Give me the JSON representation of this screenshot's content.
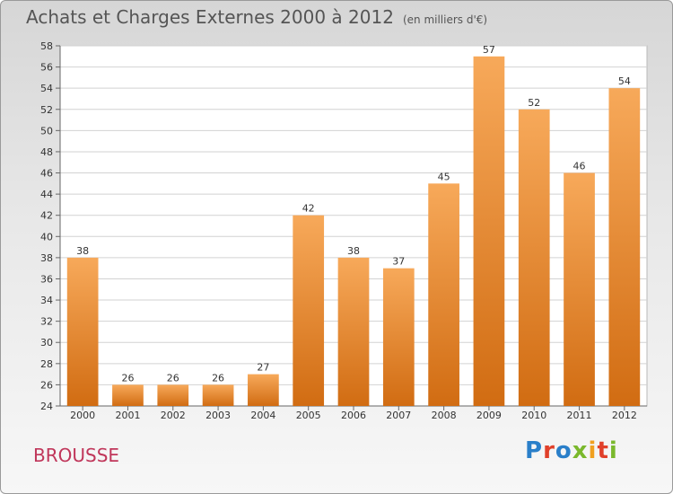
{
  "title": "Achats et Charges Externes 2000 à 2012",
  "subtitle": "(en milliers d'€)",
  "place": "BROUSSE",
  "logo": "Proxiti",
  "colors": {
    "bar_light": "#f7a95a",
    "bar_dark": "#d16c12",
    "place_text": "#c0365a",
    "logo_letters": [
      "#2a7fc9",
      "#e0402a",
      "#2a7fc9",
      "#7ab82c",
      "#f0a020",
      "#e0402a",
      "#7ab82c"
    ]
  },
  "chart_data": {
    "type": "bar",
    "categories": [
      "2000",
      "2001",
      "2002",
      "2003",
      "2004",
      "2005",
      "2006",
      "2007",
      "2008",
      "2009",
      "2010",
      "2011",
      "2012"
    ],
    "values": [
      38,
      26,
      26,
      26,
      27,
      42,
      38,
      37,
      45,
      57,
      52,
      46,
      54
    ],
    "title": "Achats et Charges Externes 2000 à 2012",
    "xlabel": "",
    "ylabel": "",
    "ylim": [
      24,
      58
    ],
    "yticks": [
      24,
      26,
      28,
      30,
      32,
      34,
      36,
      38,
      40,
      42,
      44,
      46,
      48,
      50,
      52,
      54,
      56,
      58
    ],
    "grid": true,
    "legend": "none"
  }
}
